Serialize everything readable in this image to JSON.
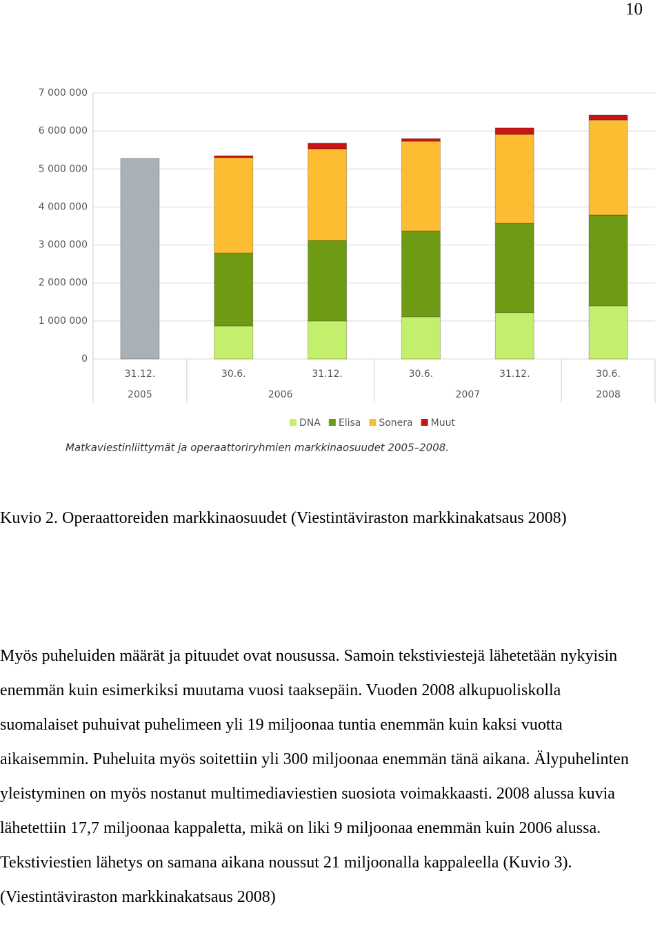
{
  "page_number": "10",
  "chart_data": {
    "type": "stacked-bar",
    "caption": "Matkaviestinliittymät ja operaattoriryhmien markkinaosuudet 2005–2008.",
    "categories": [
      "31.12.",
      "30.6.",
      "31.12.",
      "30.6.",
      "31.12.",
      "30.6."
    ],
    "year_labels": [
      "2005",
      "2006",
      "2007",
      "2008"
    ],
    "series": [
      {
        "color": "#a9b1b8",
        "values": [
          5280000,
          null,
          null,
          null,
          null,
          null
        ]
      },
      {
        "name": "DNA",
        "color": "#c4ef6c",
        "values": [
          null,
          870000,
          1000000,
          1110000,
          1220000,
          1400000
        ]
      },
      {
        "name": "Elisa",
        "color": "#6e9a14",
        "values": [
          null,
          1920000,
          2120000,
          2260000,
          2350000,
          2390000
        ]
      },
      {
        "name": "Sonera",
        "color": "#fcbd32",
        "values": [
          null,
          2510000,
          2410000,
          2360000,
          2340000,
          2500000
        ]
      },
      {
        "name": "Muut",
        "color": "#c81414",
        "values": [
          null,
          50000,
          150000,
          70000,
          170000,
          130000
        ]
      }
    ],
    "ylim": [
      0,
      7000000
    ],
    "yticks": [
      0,
      {
        "value": 1000000,
        "label": "1 000 000"
      },
      {
        "value": 2000000,
        "label": "2 000 000"
      },
      {
        "value": 3000000,
        "label": "3 000 000"
      },
      {
        "value": 4000000,
        "label": "4 000 000"
      },
      {
        "value": 5000000,
        "label": "5 000 000"
      },
      {
        "value": 6000000,
        "label": "6 000 000"
      },
      {
        "value": 7000000,
        "label": "7 000 000"
      }
    ],
    "grid": true
  },
  "figure_caption": "Kuvio 2. Operaattoreiden markkinaosuudet (Viestintäviraston markkinakatsaus 2008)",
  "paragraph": "Myös puheluiden määrät ja pituudet ovat nousussa. Samoin tekstiviestejä lähetetään nykyisin enemmän kuin esimerkiksi muutama vuosi taaksepäin. Vuoden 2008 alkupuoliskolla suomalaiset puhuivat puhelimeen yli 19 miljoonaa tuntia enemmän kuin kaksi vuotta aikaisemmin. Puheluita myös soitettiin yli 300 miljoonaa enemmän tänä aikana. Älypuhelinten yleistyminen on myös nostanut multimediaviestien suosiota voimakkaasti. 2008 alussa kuvia lähetettiin 17,7 miljoonaa kappaletta, mikä on liki 9 miljoonaa enemmän kuin 2006 alussa. Tekstiviestien lähetys on samana aikana noussut 21 miljoonalla kappaleella (Kuvio 3). (Viestintäviraston markkinakatsaus 2008)"
}
